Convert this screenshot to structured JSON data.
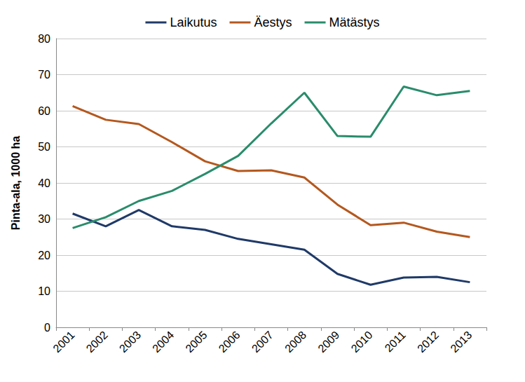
{
  "chart_data": {
    "type": "line",
    "ylabel": "Pinta-ala, 1000 ha",
    "categories": [
      "2001",
      "2002",
      "2003",
      "2004",
      "2005",
      "2006",
      "2007",
      "2008",
      "2009",
      "2010",
      "2011",
      "2012",
      "2013"
    ],
    "series": [
      {
        "name": "Laikutus",
        "color": "#1f3a68",
        "values": [
          31.5,
          28,
          32.5,
          28,
          27,
          24.5,
          23,
          21.5,
          14.8,
          11.8,
          13.8,
          14,
          12.5
        ]
      },
      {
        "name": "Äestys",
        "color": "#b4581e",
        "values": [
          61.3,
          57.5,
          56.3,
          51.3,
          46,
          43.3,
          43.5,
          41.5,
          34,
          28.3,
          29,
          26.5,
          25
        ]
      },
      {
        "name": "Mätästys",
        "color": "#2a8c6c",
        "values": [
          27.5,
          30.5,
          35,
          37.8,
          42.5,
          47.5,
          56.5,
          65,
          53,
          52.8,
          66.7,
          64.3,
          65.5
        ]
      }
    ],
    "ylim": [
      0,
      80
    ],
    "yticks": [
      0,
      10,
      20,
      30,
      40,
      50,
      60,
      70,
      80
    ],
    "grid": true,
    "legend": "top"
  }
}
